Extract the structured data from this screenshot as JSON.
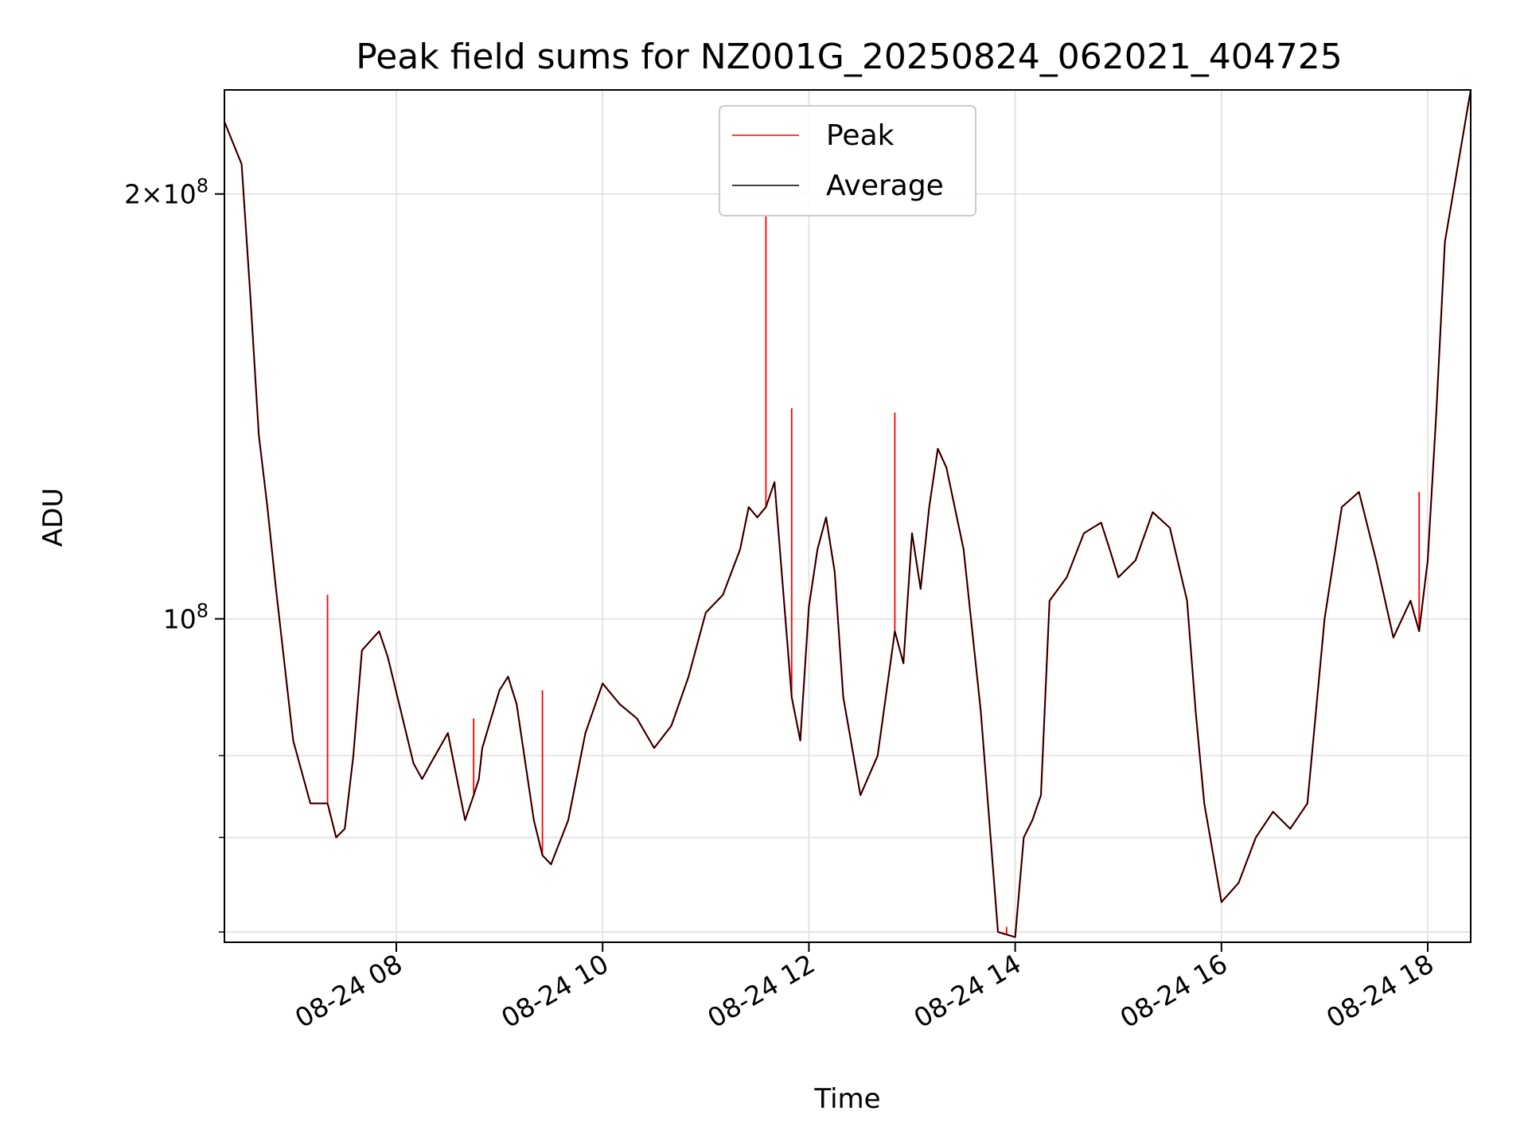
{
  "chart_data": {
    "type": "line",
    "title": "Peak field sums for NZ001G_20250824_062021_404725",
    "xlabel": "Time",
    "ylabel": "ADU",
    "yscale": "log",
    "grid": true,
    "legend_position": "top-center",
    "xlim": [
      "2025-08-24 06:20",
      "2025-08-24 18:25"
    ],
    "ylim": [
      59000000,
      237000000
    ],
    "x_ticks": [
      "2025-08-24 08:00",
      "2025-08-24 10:00",
      "2025-08-24 12:00",
      "2025-08-24 14:00",
      "2025-08-24 16:00",
      "2025-08-24 18:00"
    ],
    "x_tick_labels": [
      "08-24 08",
      "08-24 10",
      "08-24 12",
      "08-24 14",
      "08-24 16",
      "08-24 18"
    ],
    "y_major_ticks": [
      100000000,
      200000000
    ],
    "y_tick_labels": [
      {
        "base": "10",
        "exp": "8"
      },
      {
        "prefix": "2×",
        "base": "10",
        "exp": "8"
      }
    ],
    "y_minor_ticks": [
      60000000,
      70000000,
      80000000
    ],
    "series": [
      {
        "name": "Average",
        "color": "#000000",
        "x": [
          "2025-08-24 06:20",
          "2025-08-24 06:30",
          "2025-08-24 06:35",
          "2025-08-24 06:40",
          "2025-08-24 06:45",
          "2025-08-24 06:50",
          "2025-08-24 07:00",
          "2025-08-24 07:10",
          "2025-08-24 07:20",
          "2025-08-24 07:25",
          "2025-08-24 07:30",
          "2025-08-24 07:35",
          "2025-08-24 07:40",
          "2025-08-24 07:50",
          "2025-08-24 07:55",
          "2025-08-24 08:10",
          "2025-08-24 08:15",
          "2025-08-24 08:20",
          "2025-08-24 08:30",
          "2025-08-24 08:40",
          "2025-08-24 08:45",
          "2025-08-24 08:48",
          "2025-08-24 08:50",
          "2025-08-24 09:00",
          "2025-08-24 09:05",
          "2025-08-24 09:10",
          "2025-08-24 09:20",
          "2025-08-24 09:25",
          "2025-08-24 09:30",
          "2025-08-24 09:40",
          "2025-08-24 09:50",
          "2025-08-24 10:00",
          "2025-08-24 10:10",
          "2025-08-24 10:20",
          "2025-08-24 10:30",
          "2025-08-24 10:40",
          "2025-08-24 10:50",
          "2025-08-24 11:00",
          "2025-08-24 11:10",
          "2025-08-24 11:20",
          "2025-08-24 11:25",
          "2025-08-24 11:30",
          "2025-08-24 11:35",
          "2025-08-24 11:40",
          "2025-08-24 11:50",
          "2025-08-24 11:55",
          "2025-08-24 12:00",
          "2025-08-24 12:05",
          "2025-08-24 12:10",
          "2025-08-24 12:15",
          "2025-08-24 12:20",
          "2025-08-24 12:30",
          "2025-08-24 12:40",
          "2025-08-24 12:50",
          "2025-08-24 12:55",
          "2025-08-24 13:00",
          "2025-08-24 13:05",
          "2025-08-24 13:10",
          "2025-08-24 13:15",
          "2025-08-24 13:20",
          "2025-08-24 13:30",
          "2025-08-24 13:40",
          "2025-08-24 13:50",
          "2025-08-24 14:00",
          "2025-08-24 14:05",
          "2025-08-24 14:10",
          "2025-08-24 14:15",
          "2025-08-24 14:20",
          "2025-08-24 14:30",
          "2025-08-24 14:40",
          "2025-08-24 14:50",
          "2025-08-24 14:55",
          "2025-08-24 15:00",
          "2025-08-24 15:10",
          "2025-08-24 15:20",
          "2025-08-24 15:30",
          "2025-08-24 15:40",
          "2025-08-24 15:45",
          "2025-08-24 15:50",
          "2025-08-24 16:00",
          "2025-08-24 16:10",
          "2025-08-24 16:20",
          "2025-08-24 16:30",
          "2025-08-24 16:40",
          "2025-08-24 16:50",
          "2025-08-24 17:00",
          "2025-08-24 17:10",
          "2025-08-24 17:20",
          "2025-08-24 17:30",
          "2025-08-24 17:40",
          "2025-08-24 17:50",
          "2025-08-24 17:55",
          "2025-08-24 18:00",
          "2025-08-24 18:05",
          "2025-08-24 18:10",
          "2025-08-24 18:25"
        ],
        "values": [
          225000000,
          210000000,
          170000000,
          135000000,
          120000000,
          105000000,
          82000000,
          74000000,
          74000000,
          70000000,
          71000000,
          80000000,
          95000000,
          98000000,
          94000000,
          79000000,
          77000000,
          79000000,
          83000000,
          72000000,
          75000000,
          77000000,
          81000000,
          89000000,
          91000000,
          87000000,
          72000000,
          68000000,
          67000000,
          72000000,
          83000000,
          90000000,
          87000000,
          85000000,
          81000000,
          84000000,
          91000000,
          101000000,
          104000000,
          112000000,
          120000000,
          118000000,
          120000000,
          125000000,
          88000000,
          82000000,
          102000000,
          112000000,
          118000000,
          108000000,
          88000000,
          75000000,
          80000000,
          98000000,
          93000000,
          115000000,
          105000000,
          120000000,
          132000000,
          128000000,
          112000000,
          86000000,
          60000000,
          59500000,
          70000000,
          72000000,
          75000000,
          103000000,
          107000000,
          115000000,
          117000000,
          112000000,
          107000000,
          110000000,
          119000000,
          116000000,
          103000000,
          86000000,
          74000000,
          63000000,
          65000000,
          70000000,
          73000000,
          71000000,
          74000000,
          100000000,
          120000000,
          123000000,
          110000000,
          97000000,
          103000000,
          98000000,
          110000000,
          140000000,
          185000000,
          237000000
        ]
      },
      {
        "name": "Peak",
        "color": "#ff0000",
        "spikes": [
          {
            "x": "2025-08-24 07:20",
            "value": 104000000
          },
          {
            "x": "2025-08-24 08:45",
            "value": 85000000
          },
          {
            "x": "2025-08-24 09:25",
            "value": 89000000
          },
          {
            "x": "2025-08-24 11:35",
            "value": 193000000
          },
          {
            "x": "2025-08-24 11:50",
            "value": 141000000
          },
          {
            "x": "2025-08-24 12:50",
            "value": 140000000
          },
          {
            "x": "2025-08-24 13:55",
            "value": 60500000
          },
          {
            "x": "2025-08-24 17:55",
            "value": 123000000
          }
        ]
      }
    ]
  }
}
